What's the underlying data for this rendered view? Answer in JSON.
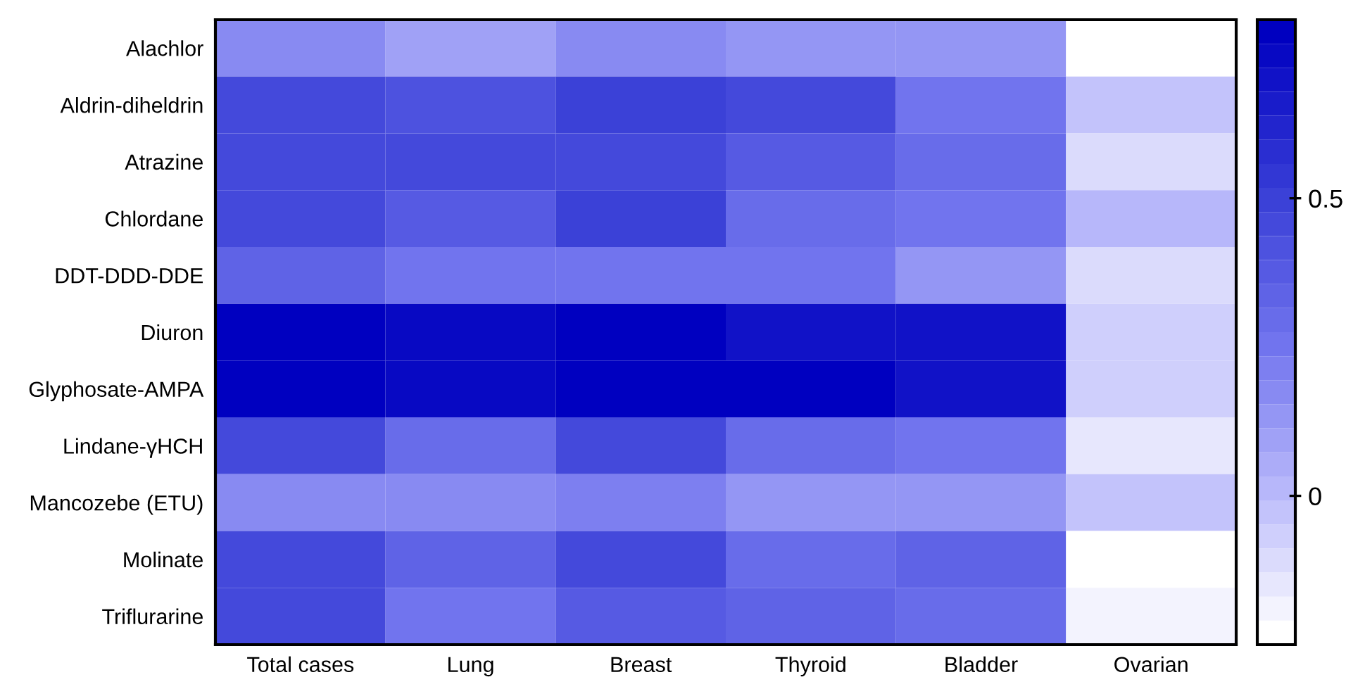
{
  "chart_data": {
    "type": "heatmap",
    "categories": [
      "Total cases",
      "Lung",
      "Breast",
      "Thyroid",
      "Bladder",
      "Ovarian"
    ],
    "y_categories": [
      "Alachlor",
      "Aldrin-diheldrin",
      "Atrazine",
      "Chlordane",
      "DDT-DDD-DDE",
      "Diuron",
      "Glyphosate-AMPA",
      "Lindane-γHCH",
      "Mancozebe (ETU)",
      "Molinate",
      "Triflurarine"
    ],
    "cells": [
      [
        0.16,
        0.09,
        0.16,
        0.14,
        0.14,
        -0.23
      ],
      [
        0.44,
        0.41,
        0.48,
        0.47,
        0.26,
        -0.03
      ],
      [
        0.47,
        0.44,
        0.44,
        0.36,
        0.29,
        -0.12
      ],
      [
        0.47,
        0.36,
        0.48,
        0.29,
        0.26,
        0
      ],
      [
        0.34,
        0.26,
        0.26,
        0.26,
        0.12,
        -0.1
      ],
      [
        0.8,
        0.72,
        0.77,
        0.68,
        0.7,
        -0.07
      ],
      [
        0.8,
        0.75,
        0.78,
        0.76,
        0.7,
        -0.07
      ],
      [
        0.44,
        0.28,
        0.44,
        0.28,
        0.24,
        -0.15
      ],
      [
        0.19,
        0.16,
        0.21,
        0.13,
        0.13,
        -0.03
      ],
      [
        0.47,
        0.34,
        0.47,
        0.28,
        0.34,
        -0.25
      ],
      [
        0.44,
        0.27,
        0.38,
        0.34,
        0.31,
        -0.18
      ]
    ],
    "clim": [
      -0.25,
      0.8
    ],
    "cticks": [
      0,
      0.5
    ]
  }
}
